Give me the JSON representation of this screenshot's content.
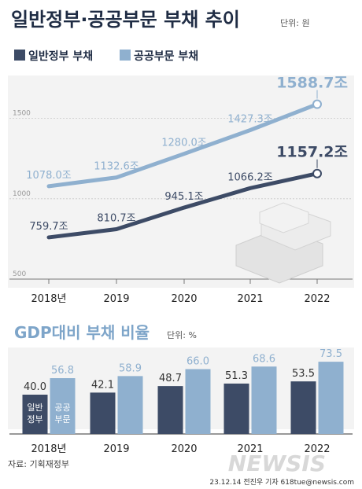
{
  "colors": {
    "dark": "#3d4b66",
    "light": "#8fb0cf",
    "title": "#1f2c44",
    "accent": "#7ea5c9",
    "panel": "#f3f3f3",
    "grid": "#c9c9c9",
    "axis": "#777777",
    "muted": "#999999"
  },
  "header": {
    "title": "일반정부·공공부문 부채 추이",
    "unit": "단위: 원"
  },
  "footer": {
    "source": "자료: 기획재정부",
    "credit": "23.12.14 전진우 기자 618tue@newsis.com",
    "watermark": "NEWSIS"
  },
  "chart_data": [
    {
      "type": "line",
      "title": "일반정부·공공부문 부채 추이",
      "unit": "단위: 원",
      "x": [
        "2018년",
        "2019",
        "2020",
        "2021",
        "2022"
      ],
      "ylim": [
        500,
        1650
      ],
      "y_ticks": [
        "500",
        "1000",
        "1500"
      ],
      "legend_position": "top-left",
      "grid": true,
      "series": [
        {
          "name": "일반정부 부채",
          "color": "dark",
          "values": [
            759.7,
            810.7,
            945.1,
            1066.2,
            1157.2
          ],
          "labels": [
            "759.7조",
            "810.7조",
            "945.1조",
            "1066.2조",
            "1157.2조"
          ]
        },
        {
          "name": "공공부문 부채",
          "color": "light",
          "values": [
            1078.0,
            1132.6,
            1280.0,
            1427.3,
            1588.7
          ],
          "labels": [
            "1078.0조",
            "1132.6조",
            "1280.0조",
            "1427.3조",
            "1588.7조"
          ]
        }
      ]
    },
    {
      "type": "bar",
      "title": "GDP대비 부채 비율",
      "unit": "단위: %",
      "categories": [
        "2018년",
        "2019",
        "2020",
        "2021",
        "2022"
      ],
      "ylim": [
        0,
        80
      ],
      "grid": false,
      "series": [
        {
          "name": "일반정부",
          "in_bar_label": [
            "일반",
            "정부"
          ],
          "color": "dark",
          "values": [
            40.0,
            42.1,
            48.7,
            51.3,
            53.5
          ],
          "labels": [
            "40.0",
            "42.1",
            "48.7",
            "51.3",
            "53.5"
          ]
        },
        {
          "name": "공공부문",
          "in_bar_label": [
            "공공",
            "부문"
          ],
          "color": "light",
          "values": [
            56.8,
            58.9,
            66.0,
            68.6,
            73.5
          ],
          "labels": [
            "56.8",
            "58.9",
            "66.0",
            "68.6",
            "73.5"
          ]
        }
      ]
    }
  ]
}
